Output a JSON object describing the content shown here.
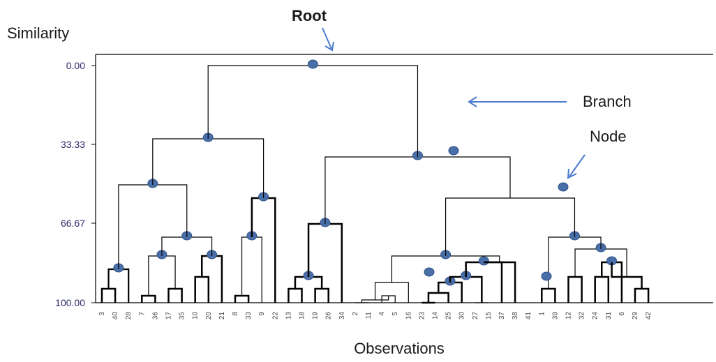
{
  "labels": {
    "y_title": "Similarity",
    "x_title": "Observations",
    "root": "Root",
    "branch": "Branch",
    "node": "Node"
  },
  "y_ticks": [
    "0.00",
    "33.33",
    "66.67",
    "100.00"
  ],
  "observations": [
    "3",
    "40",
    "28",
    "7",
    "36",
    "17",
    "35",
    "10",
    "20",
    "21",
    "8",
    "33",
    "9",
    "22",
    "13",
    "18",
    "19",
    "26",
    "34",
    "2",
    "11",
    "4",
    "5",
    "16",
    "23",
    "14",
    "25",
    "30",
    "27",
    "15",
    "37",
    "38",
    "41",
    "1",
    "39",
    "12",
    "32",
    "24",
    "31",
    "6",
    "29",
    "42"
  ],
  "colors": {
    "node": "#4a6fa8",
    "arrow": "#4a7bd0"
  }
}
